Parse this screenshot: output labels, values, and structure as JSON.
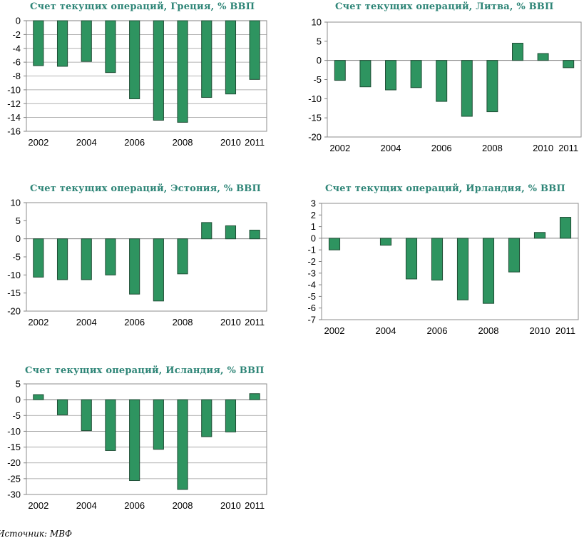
{
  "colors": {
    "bar_fill": "#2e9460",
    "bar_stroke": "#1f4d35",
    "title": "#2e8577",
    "grid": "#999999"
  },
  "source": "Источник: МВФ",
  "chart_data": [
    {
      "type": "bar",
      "title": "Счет текущих операций, Греция, % ВВП",
      "categories": [
        "2002",
        "2003",
        "2004",
        "2005",
        "2006",
        "2007",
        "2008",
        "2009",
        "2010",
        "2011"
      ],
      "values": [
        -6.5,
        -6.6,
        -5.9,
        -7.5,
        -11.3,
        -14.4,
        -14.7,
        -11.1,
        -10.6,
        -8.5
      ],
      "ylim": [
        -16,
        0
      ],
      "yticks": [
        0,
        -2,
        -4,
        -6,
        -8,
        -10,
        -12,
        -14,
        -16
      ],
      "xtick_labels": [
        "2002",
        "",
        "2004",
        "",
        "2006",
        "",
        "2008",
        "",
        "2010",
        "2011"
      ],
      "grid": true
    },
    {
      "type": "bar",
      "title": "Счет текущих операций, Литва, % ВВП",
      "categories": [
        "2002",
        "2003",
        "2004",
        "2005",
        "2006",
        "2007",
        "2008",
        "2009",
        "2010",
        "2011"
      ],
      "values": [
        -5.2,
        -6.9,
        -7.7,
        -7.1,
        -10.7,
        -14.6,
        -13.4,
        4.5,
        1.8,
        -1.9
      ],
      "ylim": [
        -20,
        10
      ],
      "yticks": [
        10,
        5,
        0,
        -5,
        -10,
        -15,
        -20
      ],
      "xtick_labels": [
        "2002",
        "",
        "2004",
        "",
        "2006",
        "",
        "2008",
        "",
        "2010",
        "2011"
      ],
      "grid": false
    },
    {
      "type": "bar",
      "title": "Счет текущих операций, Эстония, % ВВП",
      "categories": [
        "2002",
        "2003",
        "2004",
        "2005",
        "2006",
        "2007",
        "2008",
        "2009",
        "2010",
        "2011"
      ],
      "values": [
        -10.6,
        -11.3,
        -11.3,
        -10.0,
        -15.3,
        -17.2,
        -9.7,
        4.5,
        3.6,
        2.4
      ],
      "ylim": [
        -20,
        10
      ],
      "yticks": [
        10,
        5,
        0,
        -5,
        -10,
        -15,
        -20
      ],
      "xtick_labels": [
        "2002",
        "",
        "2004",
        "",
        "2006",
        "",
        "2008",
        "",
        "2010",
        "2011"
      ],
      "grid": false
    },
    {
      "type": "bar",
      "title": "Счет текущих операций, Ирландия, % ВВП",
      "categories": [
        "2002",
        "2003",
        "2004",
        "2005",
        "2006",
        "2007",
        "2008",
        "2009",
        "2010",
        "2011"
      ],
      "values": [
        -1.0,
        0.0,
        -0.6,
        -3.5,
        -3.6,
        -5.3,
        -5.6,
        -2.9,
        0.5,
        1.8
      ],
      "ylim": [
        -7,
        3
      ],
      "yticks": [
        3,
        2,
        1,
        0,
        -1,
        -2,
        -3,
        -4,
        -5,
        -6,
        -7
      ],
      "xtick_labels": [
        "2002",
        "",
        "2004",
        "",
        "2006",
        "",
        "2008",
        "",
        "2010",
        "2011"
      ],
      "grid": false
    },
    {
      "type": "bar",
      "title": "Счет текущих операций, Исландия, % ВВП",
      "categories": [
        "2002",
        "2003",
        "2004",
        "2005",
        "2006",
        "2007",
        "2008",
        "2009",
        "2010",
        "2011"
      ],
      "values": [
        1.6,
        -4.8,
        -9.8,
        -16.1,
        -25.6,
        -15.7,
        -28.4,
        -11.7,
        -10.2,
        1.9
      ],
      "ylim": [
        -30,
        5
      ],
      "yticks": [
        5,
        0,
        -5,
        -10,
        -15,
        -20,
        -25,
        -30
      ],
      "xtick_labels": [
        "2002",
        "",
        "2004",
        "",
        "2006",
        "",
        "2008",
        "",
        "2010",
        "2011"
      ],
      "grid": true
    }
  ]
}
